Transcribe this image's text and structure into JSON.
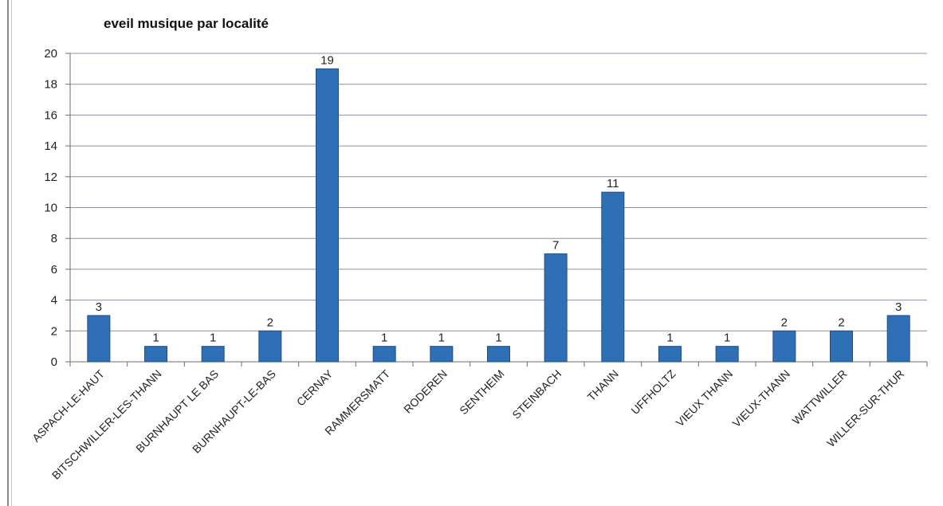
{
  "chart_data": {
    "type": "bar",
    "title": "eveil musique par localité",
    "categories": [
      "ASPACH-LE-HAUT",
      "BITSCHWILLER-LES-THANN",
      "BURNHAUPT LE BAS",
      "BURNHAUPT-LE-BAS",
      "CERNAY",
      "RAMMERSMATT",
      "RODEREN",
      "SENTHEIM",
      "STEINBACH",
      "THANN",
      "UFFHOLTZ",
      "VIEUX THANN",
      "VIEUX-THANN",
      "WATTWILLER",
      "WILLER-SUR-THUR"
    ],
    "values": [
      3,
      1,
      1,
      2,
      19,
      1,
      1,
      1,
      7,
      11,
      1,
      1,
      2,
      2,
      3
    ],
    "ylim": [
      0,
      20
    ],
    "yticks": [
      0,
      2,
      4,
      6,
      8,
      10,
      12,
      14,
      16,
      18,
      20
    ],
    "grid": true,
    "legend": "none",
    "bar_color": "#2f6fb6"
  }
}
